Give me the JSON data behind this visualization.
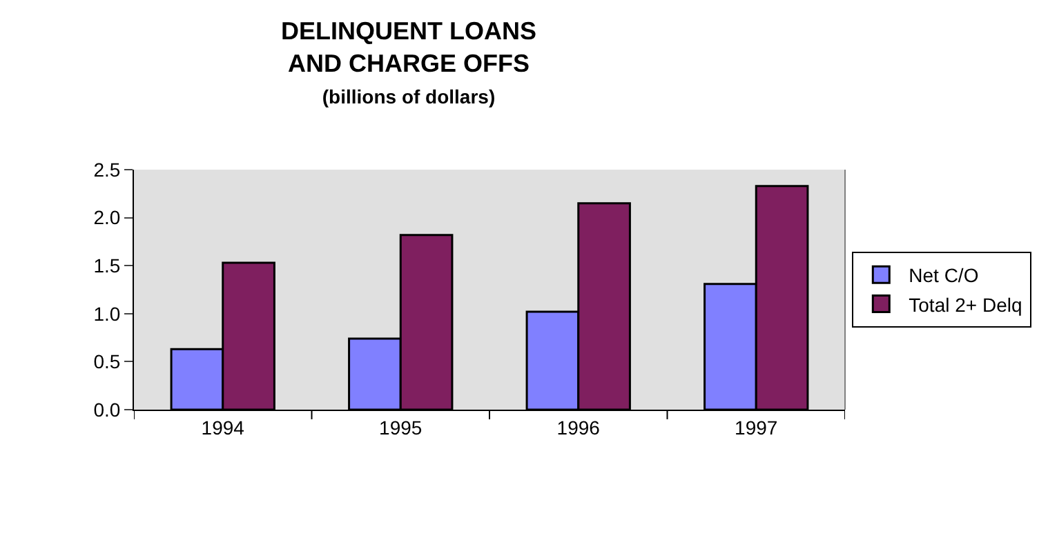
{
  "chart_data": {
    "type": "bar",
    "title": "DELINQUENT LOANS\nAND CHARGE OFFS",
    "subtitle": "(billions of dollars)",
    "categories": [
      "1994",
      "1995",
      "1996",
      "1997"
    ],
    "series": [
      {
        "name": "Net C/O",
        "color": "#8080ff",
        "values": [
          0.63,
          0.74,
          1.02,
          1.31
        ]
      },
      {
        "name": "Total 2+ Delq",
        "color": "#7f1f5f",
        "values": [
          1.53,
          1.82,
          2.15,
          2.33
        ]
      }
    ],
    "ylim": [
      0,
      2.5
    ],
    "yticks": [
      {
        "value": 0,
        "label": "0.0"
      },
      {
        "value": 0.5,
        "label": "0.5"
      },
      {
        "value": 1,
        "label": "1.0"
      },
      {
        "value": 1.5,
        "label": "1.5"
      },
      {
        "value": 2,
        "label": "2.0"
      },
      {
        "value": 2.5,
        "label": "2.5"
      }
    ],
    "grid": false,
    "legend": "right"
  }
}
